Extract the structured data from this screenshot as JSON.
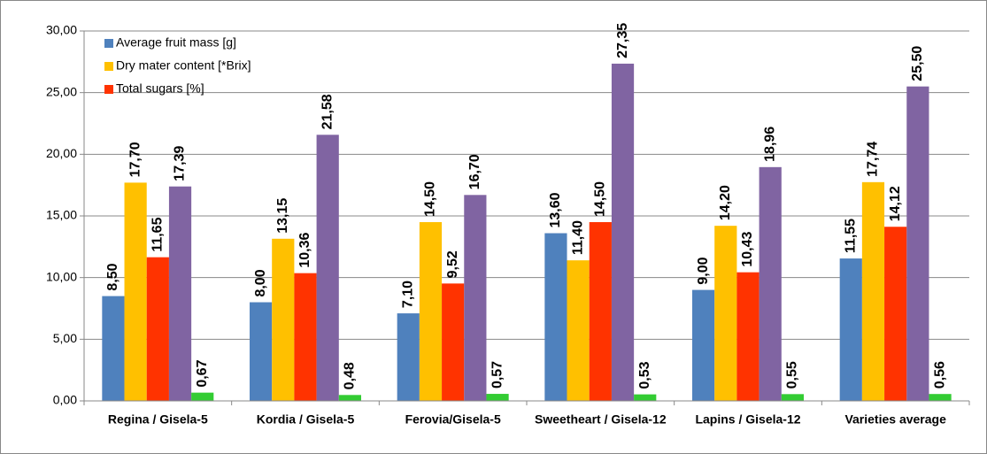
{
  "chart_data": {
    "type": "bar",
    "categories": [
      "Regina / Gisela-5",
      "Kordia / Gisela-5",
      "Ferovia/Gisela-5",
      "Sweetheart / Gisela-12",
      "Lapins / Gisela-12",
      "Varieties average"
    ],
    "series": [
      {
        "name": "Average fruit mass [g]",
        "color": "#4f81bd",
        "values": [
          8.5,
          8.0,
          7.1,
          13.6,
          9.0,
          11.55
        ],
        "value_labels": [
          "8,50",
          "8,00",
          "7,10",
          "13,60",
          "9,00",
          "11,55"
        ]
      },
      {
        "name": "Dry mater content [*Brix]",
        "color": "#ffc000",
        "values": [
          17.7,
          13.15,
          14.5,
          11.4,
          14.2,
          17.74
        ],
        "value_labels": [
          "17,70",
          "13,15",
          "14,50",
          "11,40",
          "14,20",
          "17,74"
        ]
      },
      {
        "name": "Total sugars [%]",
        "color": "#ff3300",
        "values": [
          11.65,
          10.36,
          9.52,
          14.5,
          10.43,
          14.12
        ],
        "value_labels": [
          "11,65",
          "10,36",
          "9,52",
          "14,50",
          "10,43",
          "14,12"
        ]
      },
      {
        "color": "#8064a2",
        "values": [
          17.39,
          21.58,
          16.7,
          27.35,
          18.96,
          25.5
        ],
        "value_labels": [
          "17,39",
          "21,58",
          "16,70",
          "27,35",
          "18,96",
          "25,50"
        ]
      },
      {
        "color": "#33cc33",
        "values": [
          0.67,
          0.48,
          0.57,
          0.53,
          0.55,
          0.56
        ],
        "value_labels": [
          "0,67",
          "0,48",
          "0,57",
          "0,53",
          "0,55",
          "0,56"
        ]
      }
    ],
    "ylim": [
      0,
      30
    ],
    "yticks": [
      {
        "value": 0,
        "label": "0,00"
      },
      {
        "value": 5,
        "label": "5,00"
      },
      {
        "value": 10,
        "label": "10,00"
      },
      {
        "value": 15,
        "label": "15,00"
      },
      {
        "value": 20,
        "label": "20,00"
      },
      {
        "value": 25,
        "label": "25,00"
      },
      {
        "value": 30,
        "label": "30,00"
      }
    ],
    "grid": true
  }
}
